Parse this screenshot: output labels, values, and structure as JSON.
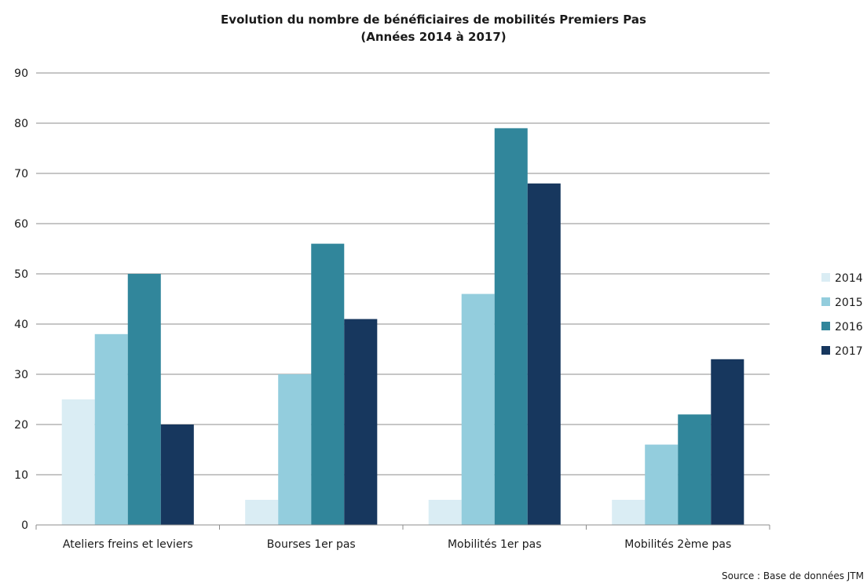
{
  "chart_data": {
    "type": "bar",
    "title_line1": "Evolution du nombre de bénéficiaires de mobilités Premiers Pas",
    "title_line2": "(Années 2014 à 2017)",
    "categories": [
      "Ateliers freins et leviers",
      "Bourses 1er pas",
      "Mobilités 1er pas",
      "Mobilités 2ème pas"
    ],
    "series": [
      {
        "name": "2014",
        "color": "#daedf4",
        "values": [
          25,
          5,
          5,
          5
        ]
      },
      {
        "name": "2015",
        "color": "#93cddd",
        "values": [
          38,
          30,
          46,
          16
        ]
      },
      {
        "name": "2016",
        "color": "#31869b",
        "values": [
          50,
          56,
          79,
          22
        ]
      },
      {
        "name": "2017",
        "color": "#17375e",
        "values": [
          20,
          41,
          68,
          33
        ]
      }
    ],
    "ylim": [
      0,
      90
    ],
    "yticks": [
      "0",
      "10",
      "20",
      "30",
      "40",
      "50",
      "60",
      "70",
      "80",
      "90"
    ],
    "grid": true,
    "legend_position": "right",
    "source": "Source : Base de données JTM"
  }
}
